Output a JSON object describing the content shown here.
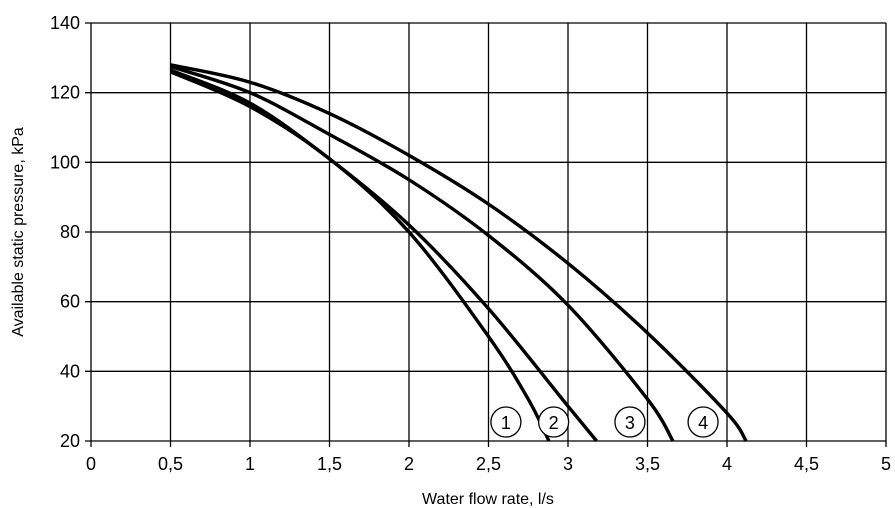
{
  "chart_data": {
    "type": "line",
    "title": "",
    "xlabel": "Water flow rate, l/s",
    "ylabel": "Available static pressure, kPa",
    "xlim": [
      0,
      5
    ],
    "ylim": [
      20,
      140
    ],
    "x_ticks": [
      "0",
      "0,5",
      "1",
      "1,5",
      "2",
      "2,5",
      "3",
      "3,5",
      "4",
      "4,5",
      "5"
    ],
    "y_ticks": [
      "20",
      "40",
      "60",
      "80",
      "100",
      "120",
      "140"
    ],
    "grid": true,
    "series": [
      {
        "name": "1",
        "x": [
          0.5,
          1.0,
          1.5,
          2.0,
          2.5,
          2.75,
          2.88
        ],
        "y": [
          126,
          116,
          101,
          80,
          50,
          32,
          20
        ]
      },
      {
        "name": "2",
        "x": [
          0.5,
          1.0,
          1.5,
          2.0,
          2.5,
          3.0,
          3.18
        ],
        "y": [
          126.5,
          117,
          101,
          82,
          58,
          30,
          20
        ]
      },
      {
        "name": "3",
        "x": [
          0.5,
          1.0,
          1.5,
          2.0,
          2.5,
          3.0,
          3.5,
          3.66
        ],
        "y": [
          127.5,
          120,
          108,
          95,
          79,
          59,
          32,
          20
        ]
      },
      {
        "name": "4",
        "x": [
          0.5,
          1.0,
          1.5,
          2.0,
          2.5,
          3.0,
          3.5,
          4.0,
          4.12
        ],
        "y": [
          128,
          123,
          114,
          102,
          88,
          71,
          51,
          28,
          20
        ]
      }
    ]
  }
}
